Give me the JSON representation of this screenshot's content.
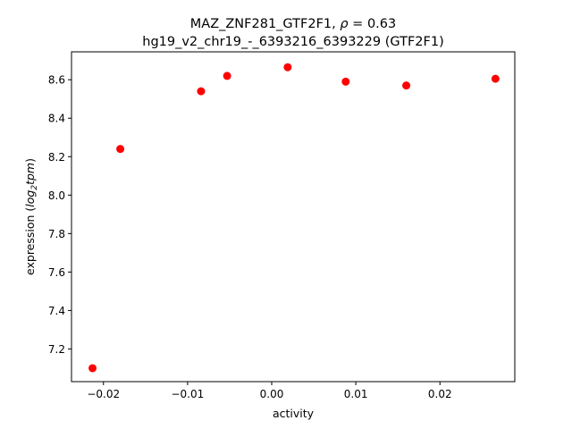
{
  "chart_data": {
    "type": "scatter",
    "title_line1": "MAZ_ZNF281_GTF2F1, ",
    "title_rho_symbol": "ρ",
    "title_rho_value": " = 0.63",
    "title_line2": "hg19_v2_chr19_-_6393216_6393229 (GTF2F1)",
    "xlabel": "activity",
    "ylabel_prefix": "expression (",
    "ylabel_log": "log",
    "ylabel_sub": "2",
    "ylabel_tpm": "tpm",
    "ylabel_suffix": ")",
    "xlim": [
      -0.0238,
      0.0289
    ],
    "ylim": [
      7.03,
      8.745
    ],
    "xticks": [
      -0.02,
      -0.01,
      0.0,
      0.01,
      0.02
    ],
    "xtick_labels": [
      "−0.02",
      "−0.01",
      "0.00",
      "0.01",
      "0.02"
    ],
    "yticks": [
      7.2,
      7.4,
      7.6,
      7.8,
      8.0,
      8.2,
      8.4,
      8.6
    ],
    "ytick_labels": [
      "7.2",
      "7.4",
      "7.6",
      "7.8",
      "8.0",
      "8.2",
      "8.4",
      "8.6"
    ],
    "grid": false,
    "marker_color": "#ff0000",
    "points": [
      {
        "x": -0.0213,
        "y": 7.1
      },
      {
        "x": -0.018,
        "y": 8.24
      },
      {
        "x": -0.0084,
        "y": 8.54
      },
      {
        "x": -0.0053,
        "y": 8.62
      },
      {
        "x": 0.0019,
        "y": 8.665
      },
      {
        "x": 0.0088,
        "y": 8.59
      },
      {
        "x": 0.016,
        "y": 8.57
      },
      {
        "x": 0.0266,
        "y": 8.605
      }
    ]
  }
}
